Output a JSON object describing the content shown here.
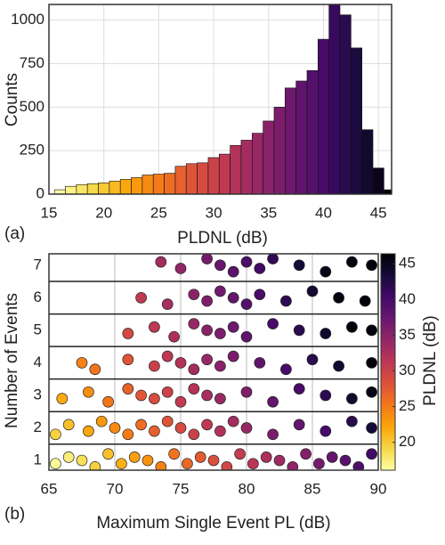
{
  "chart_data": [
    {
      "type": "histogram",
      "panel": "(a)",
      "x_label": "PLDNL (dB)",
      "y_label": "Counts",
      "bins": [
        15.5,
        16.5,
        17.5,
        18.5,
        19.5,
        20.5,
        21.5,
        22.5,
        23.5,
        24.5,
        25.5,
        26.5,
        27.5,
        28.5,
        29.5,
        30.5,
        31.5,
        32.5,
        33.5,
        34.5,
        35.5,
        36.5,
        37.5,
        38.5,
        39.5,
        40.5,
        41.5,
        42.5,
        43.5,
        44.5,
        45.5,
        46.2
      ],
      "values": [
        25,
        45,
        55,
        60,
        65,
        75,
        85,
        95,
        110,
        115,
        120,
        160,
        175,
        180,
        210,
        230,
        280,
        310,
        350,
        420,
        500,
        610,
        650,
        710,
        890,
        1090,
        1030,
        840,
        370,
        150,
        25
      ],
      "xlim": [
        15,
        46.2
      ],
      "xticks": [
        15,
        20,
        25,
        30,
        35,
        40,
        45
      ],
      "ylim": [
        0,
        1090
      ],
      "yticks": [
        0,
        250,
        500,
        750,
        1000
      ],
      "grid": true,
      "colormap": [
        "#fcffa4",
        "#f6d746",
        "#fca50a",
        "#f37819",
        "#dd513a",
        "#bc3754",
        "#932667",
        "#6a176e",
        "#420a68",
        "#160b39",
        "#000004"
      ],
      "clim": [
        16.1,
        46.4
      ]
    },
    {
      "type": "scatter",
      "panel": "(b)",
      "x_label": "Maximum Single Event PL (dB)",
      "y_label": "Number of Events",
      "colorbar_label": "PLDNL (dB)",
      "x": [
        65.5,
        66.5,
        67.5,
        68.5,
        69.5,
        70.5,
        71.5,
        72.5,
        73.5,
        74.5,
        75.5,
        76.5,
        77.5,
        78.5,
        79.5,
        80.5,
        81.5,
        82.5,
        83.5,
        84.5,
        85.5,
        86.5,
        87.5,
        88.5,
        89.5,
        65.5,
        66.5,
        68,
        69,
        70,
        71,
        72,
        73,
        74,
        75,
        76,
        77,
        78,
        79,
        80,
        82,
        84,
        86,
        88,
        89.5,
        66,
        68,
        69.5,
        71,
        72,
        73,
        74,
        75,
        76,
        77,
        78,
        80,
        82,
        84,
        86,
        88,
        89.5,
        67.5,
        68.5,
        71,
        73,
        74,
        75,
        76,
        77,
        78,
        79,
        81,
        83,
        85,
        87,
        89.5,
        71,
        73,
        74.5,
        76,
        77,
        78,
        79,
        80,
        82,
        84,
        86,
        88,
        89.5,
        72,
        74,
        76,
        77,
        78,
        79,
        80,
        81,
        83,
        85,
        87,
        89,
        73.5,
        75,
        77,
        78,
        79,
        80,
        81,
        82,
        84,
        86,
        88,
        89.5
      ],
      "y": [
        0.9,
        1.1,
        1.0,
        0.8,
        1.2,
        0.9,
        1.1,
        1.0,
        0.8,
        1.2,
        0.9,
        1.1,
        1.0,
        0.8,
        1.2,
        0.9,
        1.1,
        1.0,
        0.8,
        1.2,
        0.9,
        1.1,
        1.0,
        0.8,
        1.2,
        1.8,
        2.1,
        1.9,
        2.2,
        2.0,
        1.8,
        2.1,
        1.9,
        2.2,
        2.0,
        1.8,
        2.1,
        1.9,
        2.2,
        2.0,
        1.8,
        2.1,
        1.9,
        2.2,
        2.0,
        2.9,
        3.1,
        2.8,
        3.2,
        3.0,
        2.9,
        3.1,
        2.8,
        3.2,
        3.0,
        2.9,
        3.1,
        2.8,
        3.2,
        3.0,
        2.9,
        3.1,
        4.0,
        3.8,
        4.1,
        3.9,
        4.2,
        4.0,
        3.8,
        4.1,
        3.9,
        4.2,
        4.0,
        3.8,
        4.1,
        3.9,
        4.0,
        4.9,
        5.1,
        4.8,
        5.2,
        5.0,
        4.9,
        5.1,
        4.8,
        5.2,
        5.0,
        4.9,
        5.1,
        5.0,
        6.0,
        5.8,
        6.1,
        5.9,
        6.2,
        6.0,
        5.8,
        6.1,
        5.9,
        6.2,
        6.0,
        5.9,
        7.1,
        6.9,
        7.2,
        7.0,
        6.8,
        7.1,
        6.9,
        7.2,
        7.0,
        6.8,
        7.1,
        7.0
      ],
      "c": [
        16.5,
        17.5,
        18.5,
        19.5,
        20.5,
        21.5,
        22.5,
        23.5,
        24.5,
        25.5,
        26.5,
        27.5,
        28.5,
        29.5,
        30.5,
        31.5,
        32.5,
        33.5,
        34.5,
        35.5,
        36.5,
        37.5,
        38.5,
        39.5,
        40.5,
        19.5,
        20.5,
        22,
        23,
        24,
        25,
        26,
        27,
        28,
        29,
        30,
        31,
        32,
        33,
        34,
        36,
        38,
        40,
        42,
        43.5,
        21.8,
        23.8,
        25.3,
        26.8,
        27.8,
        28.8,
        29.8,
        30.8,
        31.8,
        32.8,
        33.8,
        35.8,
        37.8,
        39.8,
        41.8,
        43.8,
        45.3,
        24.5,
        25.5,
        28,
        30,
        31,
        32,
        33,
        34,
        35,
        36,
        38,
        40,
        42,
        44,
        46,
        29,
        31,
        32.5,
        34,
        35,
        36,
        37,
        38,
        40,
        42,
        44,
        46,
        46,
        30.8,
        32.8,
        34.8,
        35.8,
        36.8,
        37.8,
        38.8,
        39.8,
        41.8,
        43.8,
        45.8,
        46,
        33,
        34.5,
        36.5,
        37.5,
        38.5,
        39.5,
        40.5,
        41.5,
        43.5,
        45.5,
        46,
        46
      ],
      "xlim": [
        65,
        90
      ],
      "xticks": [
        65,
        70,
        75,
        80,
        85,
        90
      ],
      "ylim": [
        0.7,
        7.35
      ],
      "yticks": [
        1,
        2,
        3,
        4,
        5,
        6,
        7
      ],
      "grid": true,
      "row_lines": [
        1.5,
        2.5,
        3.5,
        4.5,
        5.5,
        6.5
      ],
      "clim": [
        16.1,
        46.4
      ],
      "cticks": [
        20,
        25,
        30,
        35,
        40,
        45
      ]
    }
  ]
}
